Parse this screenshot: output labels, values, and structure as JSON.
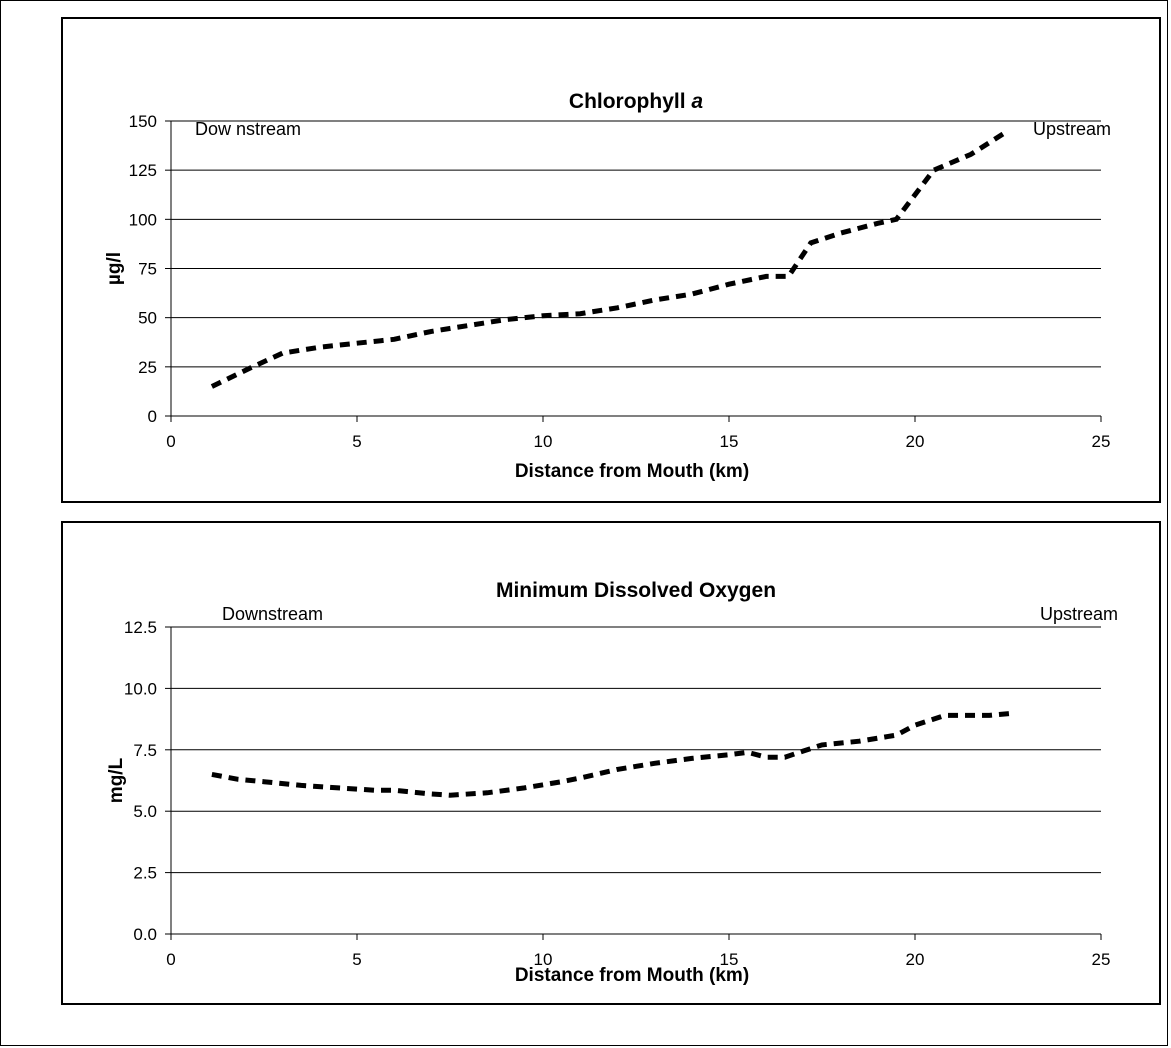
{
  "chart_data": [
    {
      "type": "line",
      "title": "Chlorophyll",
      "title_italic_suffix": "a",
      "xlabel": "Distance from Mouth (km)",
      "ylabel": "µg/l",
      "xlim": [
        0,
        25
      ],
      "ylim": [
        0,
        150
      ],
      "xticks": [
        "0",
        "5",
        "10",
        "15",
        "20",
        "25"
      ],
      "yticks": [
        "0",
        "25",
        "50",
        "75",
        "100",
        "125",
        "150"
      ],
      "grid": true,
      "annotations": {
        "left": "Dow nstream",
        "right": "Upstream"
      },
      "series": [
        {
          "x": [
            1.1,
            2.2,
            3.0,
            4.0,
            5.0,
            6.0,
            7.0,
            8.0,
            9.0,
            10.0,
            11.0,
            12.0,
            13.0,
            14.0,
            15.0,
            16.0,
            16.6,
            17.2,
            18.0,
            19.0,
            19.5,
            20.5,
            21.5,
            22.5
          ],
          "y": [
            15,
            25,
            32,
            35,
            37,
            39,
            43,
            46,
            49,
            51,
            52,
            55,
            59,
            62,
            67,
            71,
            71,
            88,
            93,
            98,
            100,
            125,
            133,
            145
          ]
        }
      ]
    },
    {
      "type": "line",
      "title": "Minimum Dissolved Oxygen",
      "xlabel": "Distance from Mouth (km)",
      "ylabel": "mg/L",
      "xlim": [
        0,
        25
      ],
      "ylim": [
        0,
        12.5
      ],
      "xticks": [
        "0",
        "5",
        "10",
        "15",
        "20",
        "25"
      ],
      "yticks": [
        "0.0",
        "2.5",
        "5.0",
        "7.5",
        "10.0",
        "12.5"
      ],
      "grid": true,
      "annotations": {
        "left": "Downstream",
        "right": "Upstream"
      },
      "series": [
        {
          "x": [
            1.1,
            1.8,
            2.5,
            3.5,
            4.5,
            5.5,
            6.0,
            7.0,
            7.5,
            8.5,
            9.5,
            10.5,
            11.0,
            12.0,
            13.0,
            14.0,
            15.0,
            15.5,
            16.0,
            16.5,
            17.0,
            17.5,
            18.5,
            19.5,
            20.0,
            20.8,
            22.0,
            22.7
          ],
          "y": [
            6.5,
            6.3,
            6.2,
            6.05,
            5.95,
            5.85,
            5.85,
            5.7,
            5.65,
            5.75,
            5.95,
            6.2,
            6.35,
            6.7,
            6.95,
            7.15,
            7.3,
            7.4,
            7.2,
            7.2,
            7.45,
            7.7,
            7.85,
            8.1,
            8.5,
            8.9,
            8.9,
            9.0
          ]
        }
      ]
    }
  ]
}
